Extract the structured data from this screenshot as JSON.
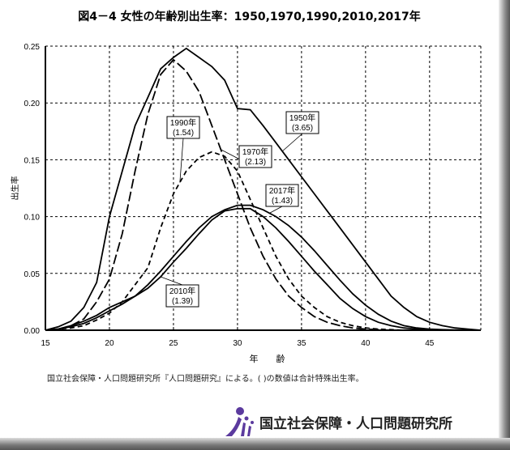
{
  "chart_data": {
    "type": "line",
    "title": "図4－4 女性の年齢別出生率：1950,1970,1990,2010,2017年",
    "xlabel": "年　　齢",
    "ylabel": "出生率",
    "xlim": [
      15,
      49
    ],
    "ylim": [
      0,
      0.25
    ],
    "xticks": [
      "15",
      "20",
      "25",
      "30",
      "35",
      "40",
      "45"
    ],
    "yticks": [
      "0.00",
      "0.05",
      "0.10",
      "0.15",
      "0.20",
      "0.25"
    ],
    "grid": true,
    "x": [
      15,
      16,
      17,
      18,
      19,
      20,
      21,
      22,
      23,
      24,
      25,
      26,
      27,
      28,
      29,
      30,
      31,
      32,
      33,
      34,
      35,
      36,
      37,
      38,
      39,
      40,
      41,
      42,
      43,
      44,
      45,
      46,
      47,
      48,
      49
    ],
    "series": [
      {
        "name": "1950年",
        "tfr": "(3.65)",
        "style": "solid",
        "values": [
          0,
          0.003,
          0.008,
          0.02,
          0.042,
          0.1,
          0.14,
          0.18,
          0.205,
          0.23,
          0.24,
          0.248,
          0.24,
          0.232,
          0.22,
          0.195,
          0.194,
          0.18,
          0.165,
          0.15,
          0.135,
          0.12,
          0.105,
          0.09,
          0.075,
          0.06,
          0.045,
          0.03,
          0.02,
          0.012,
          0.007,
          0.004,
          0.002,
          0.001,
          0
        ]
      },
      {
        "name": "1970年",
        "tfr": "(2.13)",
        "style": "longdash",
        "values": [
          0,
          0.001,
          0.004,
          0.01,
          0.025,
          0.045,
          0.085,
          0.14,
          0.19,
          0.225,
          0.238,
          0.228,
          0.21,
          0.18,
          0.15,
          0.12,
          0.09,
          0.065,
          0.045,
          0.03,
          0.02,
          0.012,
          0.007,
          0.004,
          0.002,
          0.001,
          0.0005,
          0,
          0,
          0,
          0,
          0,
          0,
          0,
          0
        ]
      },
      {
        "name": "1990年",
        "tfr": "(1.54)",
        "style": "dash",
        "values": [
          0,
          0.001,
          0.002,
          0.004,
          0.009,
          0.015,
          0.025,
          0.04,
          0.055,
          0.09,
          0.12,
          0.14,
          0.152,
          0.157,
          0.153,
          0.14,
          0.115,
          0.09,
          0.065,
          0.045,
          0.03,
          0.02,
          0.012,
          0.007,
          0.004,
          0.002,
          0.001,
          0.0005,
          0,
          0,
          0,
          0,
          0,
          0,
          0
        ]
      },
      {
        "name": "2010年",
        "tfr": "(1.39)",
        "style": "solid",
        "values": [
          0,
          0.001,
          0.004,
          0.008,
          0.013,
          0.02,
          0.025,
          0.03,
          0.037,
          0.047,
          0.06,
          0.072,
          0.085,
          0.097,
          0.105,
          0.107,
          0.107,
          0.1,
          0.09,
          0.078,
          0.065,
          0.052,
          0.04,
          0.028,
          0.019,
          0.012,
          0.007,
          0.004,
          0.002,
          0.001,
          0.0005,
          0,
          0,
          0,
          0
        ]
      },
      {
        "name": "2017年",
        "tfr": "(1.43)",
        "style": "solid",
        "values": [
          0,
          0.001,
          0.003,
          0.006,
          0.011,
          0.017,
          0.023,
          0.03,
          0.04,
          0.052,
          0.065,
          0.078,
          0.09,
          0.1,
          0.106,
          0.11,
          0.11,
          0.106,
          0.1,
          0.092,
          0.082,
          0.07,
          0.057,
          0.044,
          0.032,
          0.022,
          0.014,
          0.008,
          0.004,
          0.002,
          0.001,
          0.0005,
          0.0002,
          0.0001,
          0
        ]
      }
    ],
    "annotations": [
      {
        "series": "1990年",
        "line1": "1990年",
        "line2": "(1.54)",
        "at": 25.5
      },
      {
        "series": "1950年",
        "line1": "1950年",
        "line2": "(3.65)",
        "at": 33.5
      },
      {
        "series": "1970年",
        "line1": "1970年",
        "line2": "(2.13)",
        "at": 28.7
      },
      {
        "series": "2017年",
        "line1": "2017年",
        "line2": "(1.43)",
        "at": 32.5
      },
      {
        "series": "2010年",
        "line1": "2010年",
        "line2": "(1.39)",
        "at": 24
      }
    ]
  },
  "note": "国立社会保障・人口問題研究所『人口問題研究』による。( )の数値は合計特殊出生率。",
  "logo_text": "国立社会保障・人口問題研究所"
}
